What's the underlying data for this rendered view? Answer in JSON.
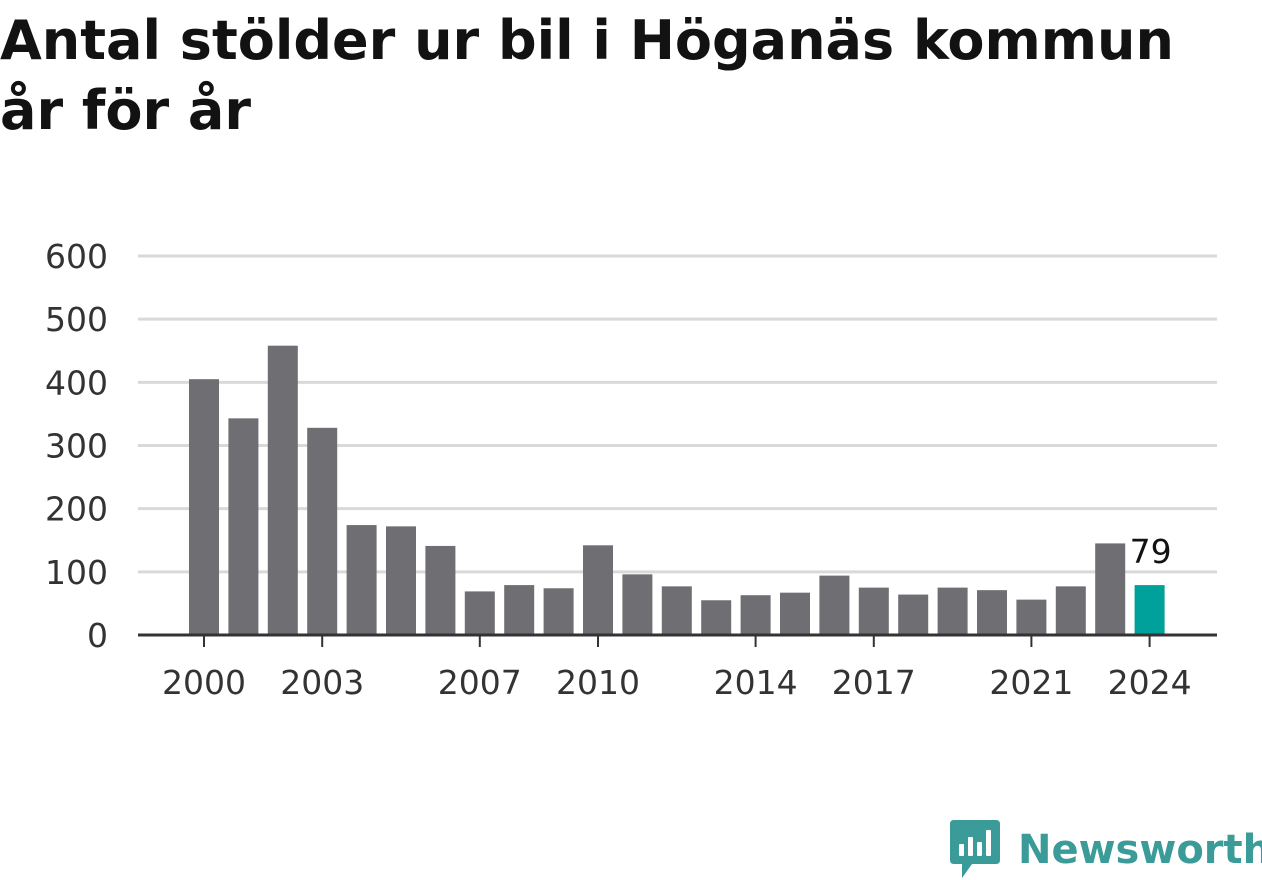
{
  "colors": {
    "bar": "#6f6e73",
    "highlight": "#00a19a",
    "grid": "#d9d9d9",
    "axis": "#333333",
    "text": "#333333",
    "brand": "#3a9b98"
  },
  "brand": {
    "name": "Newsworthy",
    "icon": "newsworthy-logo-icon"
  },
  "chart_data": {
    "type": "bar",
    "title": "Antal stölder ur bil i Höganäs kommun år för år",
    "xlabel": "",
    "ylabel": "",
    "categories": [
      "2000",
      "2001",
      "2002",
      "2003",
      "2004",
      "2005",
      "2006",
      "2007",
      "2008",
      "2009",
      "2010",
      "2011",
      "2012",
      "2013",
      "2014",
      "2015",
      "2016",
      "2017",
      "2018",
      "2019",
      "2020",
      "2021",
      "2022",
      "2023",
      "2024"
    ],
    "x_tick_labels": [
      "2000",
      "2003",
      "2007",
      "2010",
      "2014",
      "2017",
      "2021",
      "2024"
    ],
    "values": [
      405,
      343,
      458,
      328,
      174,
      172,
      141,
      69,
      79,
      74,
      142,
      96,
      77,
      55,
      63,
      67,
      94,
      75,
      64,
      75,
      71,
      56,
      77,
      145,
      79
    ],
    "highlight_index": 24,
    "highlight_label": "79",
    "ylim": [
      0,
      600
    ],
    "yticks": [
      0,
      100,
      200,
      300,
      400,
      500,
      600
    ],
    "grid": true,
    "legend": "none"
  }
}
